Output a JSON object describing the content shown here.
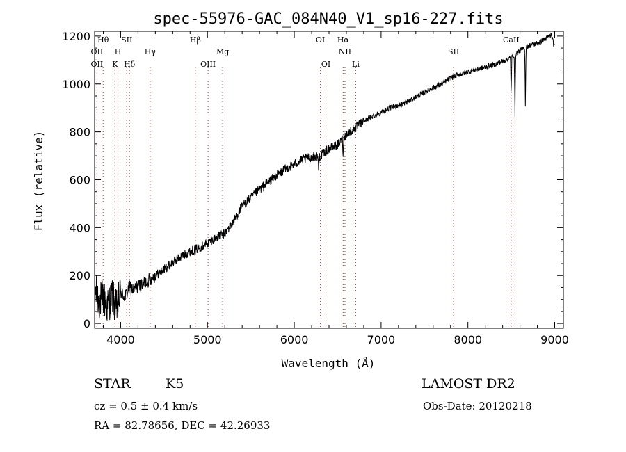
{
  "chart_data": {
    "type": "line",
    "title": "spec-55976-GAC_084N40_V1_sp16-227.fits",
    "xlabel": "Wavelength (Å)",
    "ylabel": "Flux (relative)",
    "xlim": [
      3700,
      9100
    ],
    "ylim": [
      -20,
      1220
    ],
    "xticks": [
      4000,
      5000,
      6000,
      7000,
      8000,
      9000
    ],
    "yticks": [
      0,
      200,
      400,
      600,
      800,
      1000,
      1200
    ],
    "grid": false,
    "line_color": "#000000",
    "marker_color": "#c0392b",
    "series": [
      {
        "x": [
          3700,
          3750,
          3800,
          3850,
          3900,
          3950,
          4000,
          4050,
          4100,
          4150,
          4200,
          4300,
          4400,
          4500,
          4600,
          4700,
          4800,
          4900,
          5000,
          5100,
          5200,
          5300,
          5400,
          5500,
          5600,
          5700,
          5800,
          5900,
          6000,
          6100,
          6200,
          6300,
          6400,
          6500,
          6600,
          6700,
          6800,
          6900,
          7000,
          7100,
          7200,
          7300,
          7400,
          7500,
          7600,
          7700,
          7800,
          7900,
          8000,
          8100,
          8200,
          8300,
          8400,
          8500,
          8600,
          8700,
          8800,
          8900,
          8960,
          9000
        ],
        "y": [
          150,
          90,
          110,
          70,
          120,
          60,
          130,
          110,
          150,
          140,
          155,
          175,
          200,
          225,
          255,
          280,
          300,
          315,
          335,
          360,
          375,
          425,
          490,
          525,
          560,
          590,
          620,
          645,
          665,
          685,
          695,
          700,
          730,
          745,
          790,
          815,
          845,
          865,
          880,
          900,
          910,
          925,
          945,
          965,
          985,
          1000,
          1025,
          1040,
          1050,
          1060,
          1070,
          1080,
          1095,
          1110,
          1140,
          1160,
          1170,
          1190,
          1205,
          1150
        ]
      }
    ],
    "absorption": [
      {
        "x": 6280,
        "depth": 60
      },
      {
        "x": 6563,
        "depth": 70
      },
      {
        "x": 8498,
        "depth": 160
      },
      {
        "x": 8542,
        "depth": 260
      },
      {
        "x": 8662,
        "depth": 240
      }
    ],
    "spectral_lines": [
      {
        "label": "Hθ",
        "x": 3798,
        "row": 0
      },
      {
        "label": "SII",
        "x": 4070,
        "row": 0
      },
      {
        "label": "Hβ",
        "x": 4861,
        "row": 0
      },
      {
        "label": "OI",
        "x": 6300,
        "row": 0
      },
      {
        "label": "Hα",
        "x": 6563,
        "row": 0
      },
      {
        "label": "CaII",
        "x": 8498,
        "row": 0
      },
      {
        "label": "OII",
        "x": 3727,
        "row": 1
      },
      {
        "label": "H",
        "x": 3969,
        "row": 1
      },
      {
        "label": "Hγ",
        "x": 4340,
        "row": 1
      },
      {
        "label": "Mg",
        "x": 5175,
        "row": 1
      },
      {
        "label": "NII",
        "x": 6584,
        "row": 1
      },
      {
        "label": "SII",
        "x": 7835,
        "row": 1
      },
      {
        "label": "OII",
        "x": 3727,
        "row": 2
      },
      {
        "label": "K",
        "x": 3934,
        "row": 2
      },
      {
        "label": "Hδ",
        "x": 4102,
        "row": 2
      },
      {
        "label": "OIII",
        "x": 5007,
        "row": 2
      },
      {
        "label": "OI",
        "x": 6364,
        "row": 2
      },
      {
        "label": "Li",
        "x": 6708,
        "row": 2
      }
    ],
    "marker_lines": [
      3727,
      3798,
      3934,
      3969,
      4070,
      4102,
      4340,
      4861,
      5007,
      5175,
      6300,
      6364,
      6563,
      6584,
      6708,
      7835,
      8498,
      8542
    ]
  },
  "info": {
    "object_class": "STAR",
    "subclass": "K5",
    "survey": "LAMOST DR2",
    "cz": "cz = 0.5 ± 0.4 km/s",
    "obs_date": "Obs-Date: 20120218",
    "radec": "RA =  82.78656, DEC =  42.26933"
  }
}
